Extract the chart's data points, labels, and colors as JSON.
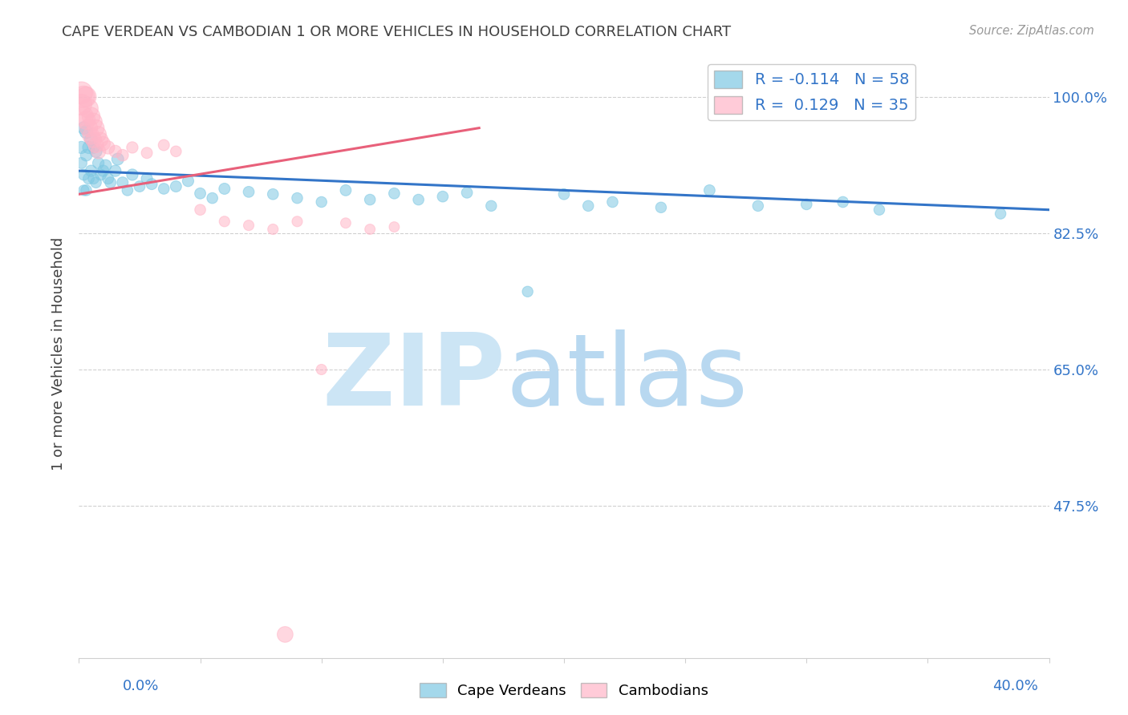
{
  "title": "CAPE VERDEAN VS CAMBODIAN 1 OR MORE VEHICLES IN HOUSEHOLD CORRELATION CHART",
  "source": "Source: ZipAtlas.com",
  "ylabel": "1 or more Vehicles in Household",
  "blue_R": -0.114,
  "blue_N": 58,
  "pink_R": 0.129,
  "pink_N": 35,
  "xlim": [
    0.0,
    0.4
  ],
  "ylim": [
    0.28,
    1.06
  ],
  "yticks": [
    0.475,
    0.65,
    0.825,
    1.0
  ],
  "ytick_labels": [
    "47.5%",
    "65.0%",
    "82.5%",
    "100.0%"
  ],
  "xtick_left_label": "0.0%",
  "xtick_right_label": "40.0%",
  "blue_points": [
    [
      0.001,
      0.935
    ],
    [
      0.001,
      0.915
    ],
    [
      0.002,
      0.96
    ],
    [
      0.002,
      0.9
    ],
    [
      0.002,
      0.88
    ],
    [
      0.003,
      0.955
    ],
    [
      0.003,
      0.925
    ],
    [
      0.003,
      0.88
    ],
    [
      0.004,
      0.935
    ],
    [
      0.004,
      0.895
    ],
    [
      0.005,
      0.945
    ],
    [
      0.005,
      0.905
    ],
    [
      0.006,
      0.935
    ],
    [
      0.006,
      0.895
    ],
    [
      0.007,
      0.93
    ],
    [
      0.007,
      0.89
    ],
    [
      0.008,
      0.915
    ],
    [
      0.009,
      0.9
    ],
    [
      0.01,
      0.905
    ],
    [
      0.011,
      0.912
    ],
    [
      0.012,
      0.895
    ],
    [
      0.013,
      0.89
    ],
    [
      0.015,
      0.905
    ],
    [
      0.016,
      0.92
    ],
    [
      0.018,
      0.89
    ],
    [
      0.02,
      0.88
    ],
    [
      0.022,
      0.9
    ],
    [
      0.025,
      0.885
    ],
    [
      0.028,
      0.895
    ],
    [
      0.03,
      0.888
    ],
    [
      0.035,
      0.882
    ],
    [
      0.04,
      0.885
    ],
    [
      0.045,
      0.892
    ],
    [
      0.05,
      0.876
    ],
    [
      0.055,
      0.87
    ],
    [
      0.06,
      0.882
    ],
    [
      0.07,
      0.878
    ],
    [
      0.08,
      0.875
    ],
    [
      0.09,
      0.87
    ],
    [
      0.1,
      0.865
    ],
    [
      0.11,
      0.88
    ],
    [
      0.12,
      0.868
    ],
    [
      0.13,
      0.876
    ],
    [
      0.14,
      0.868
    ],
    [
      0.15,
      0.872
    ],
    [
      0.16,
      0.877
    ],
    [
      0.17,
      0.86
    ],
    [
      0.185,
      0.75
    ],
    [
      0.2,
      0.875
    ],
    [
      0.21,
      0.86
    ],
    [
      0.22,
      0.865
    ],
    [
      0.24,
      0.858
    ],
    [
      0.26,
      0.88
    ],
    [
      0.28,
      0.86
    ],
    [
      0.3,
      0.862
    ],
    [
      0.315,
      0.865
    ],
    [
      0.33,
      0.855
    ],
    [
      0.38,
      0.85
    ]
  ],
  "blue_sizes": [
    120,
    100,
    130,
    100,
    90,
    140,
    110,
    95,
    120,
    100,
    130,
    105,
    110,
    95,
    120,
    95,
    105,
    100,
    105,
    108,
    100,
    98,
    105,
    115,
    100,
    95,
    105,
    98,
    102,
    100,
    96,
    100,
    103,
    98,
    95,
    100,
    97,
    96,
    94,
    93,
    98,
    95,
    97,
    95,
    96,
    97,
    93,
    92,
    97,
    94,
    95,
    93,
    98,
    94,
    95,
    96,
    93,
    93
  ],
  "pink_points": [
    [
      0.001,
      1.005
    ],
    [
      0.001,
      0.99
    ],
    [
      0.002,
      1.0
    ],
    [
      0.002,
      0.975
    ],
    [
      0.003,
      1.0
    ],
    [
      0.003,
      0.97
    ],
    [
      0.004,
      0.985
    ],
    [
      0.004,
      0.96
    ],
    [
      0.005,
      0.975
    ],
    [
      0.005,
      0.95
    ],
    [
      0.006,
      0.968
    ],
    [
      0.006,
      0.945
    ],
    [
      0.007,
      0.96
    ],
    [
      0.007,
      0.938
    ],
    [
      0.008,
      0.952
    ],
    [
      0.008,
      0.93
    ],
    [
      0.009,
      0.945
    ],
    [
      0.01,
      0.94
    ],
    [
      0.012,
      0.935
    ],
    [
      0.015,
      0.93
    ],
    [
      0.018,
      0.925
    ],
    [
      0.022,
      0.935
    ],
    [
      0.028,
      0.928
    ],
    [
      0.035,
      0.938
    ],
    [
      0.04,
      0.93
    ],
    [
      0.05,
      0.855
    ],
    [
      0.06,
      0.84
    ],
    [
      0.07,
      0.835
    ],
    [
      0.08,
      0.83
    ],
    [
      0.09,
      0.84
    ],
    [
      0.1,
      0.65
    ],
    [
      0.11,
      0.838
    ],
    [
      0.12,
      0.83
    ],
    [
      0.13,
      0.833
    ],
    [
      0.085,
      0.31
    ]
  ],
  "pink_sizes": [
    400,
    350,
    380,
    300,
    320,
    270,
    290,
    250,
    260,
    230,
    240,
    210,
    220,
    190,
    200,
    175,
    170,
    160,
    140,
    120,
    110,
    105,
    100,
    100,
    95,
    95,
    90,
    88,
    88,
    88,
    88,
    85,
    85,
    85,
    200
  ],
  "blue_line_x": [
    0.0,
    0.4
  ],
  "blue_line_y": [
    0.905,
    0.855
  ],
  "pink_line_x": [
    0.0,
    0.165
  ],
  "pink_line_y": [
    0.875,
    0.96
  ],
  "blue_color": "#7ec8e3",
  "pink_color": "#ffb6c8",
  "blue_line_color": "#3375c8",
  "pink_line_color": "#e8607a",
  "grid_color": "#d0d0d0",
  "title_color": "#404040",
  "axis_label_color": "#404040",
  "right_tick_color": "#3375c8",
  "bottom_tick_color": "#3375c8",
  "watermark_zip_color": "#cce5f5",
  "watermark_atlas_color": "#b8d8f0",
  "background_color": "#ffffff",
  "legend_blue_label": "R = -0.114   N = 58",
  "legend_pink_label": "R =  0.129   N = 35",
  "legend_blue_color": "#7ec8e3",
  "legend_pink_color": "#ffb6c8",
  "bottom_legend_blue": "Cape Verdeans",
  "bottom_legend_pink": "Cambodians"
}
